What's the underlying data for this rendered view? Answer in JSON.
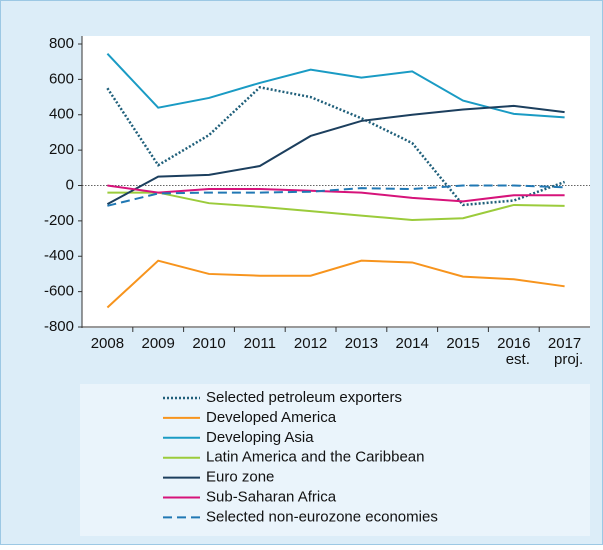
{
  "chart_data": {
    "type": "line",
    "categories": [
      "2008",
      "2009",
      "2010",
      "2011",
      "2012",
      "2013",
      "2014",
      "2015",
      "2016",
      "2017"
    ],
    "category_sublabels": [
      null,
      null,
      null,
      null,
      null,
      null,
      null,
      null,
      "est.",
      "proj."
    ],
    "ylim": [
      -800,
      800
    ],
    "yticks": [
      -800,
      -600,
      -400,
      -200,
      0,
      200,
      400,
      600,
      800
    ],
    "series": [
      {
        "name": "Selected petroleum exporters",
        "color": "#1f5f7a",
        "style": "dotted",
        "values": [
          550,
          115,
          285,
          555,
          500,
          380,
          240,
          -110,
          -85,
          20
        ]
      },
      {
        "name": "Developed America",
        "color": "#f7941d",
        "style": "solid",
        "values": [
          -690,
          -425,
          -500,
          -510,
          -510,
          -425,
          -435,
          -515,
          -530,
          -570
        ]
      },
      {
        "name": "Developing Asia",
        "color": "#1a9bc4",
        "style": "solid",
        "values": [
          745,
          440,
          495,
          580,
          655,
          610,
          645,
          480,
          405,
          385
        ]
      },
      {
        "name": "Latin America and the Caribbean",
        "color": "#9bcb3b",
        "style": "solid",
        "values": [
          -40,
          -40,
          -100,
          -120,
          -145,
          -170,
          -195,
          -185,
          -110,
          -115
        ]
      },
      {
        "name": "Euro zone",
        "color": "#1c3f5e",
        "style": "solid",
        "values": [
          -105,
          50,
          60,
          110,
          280,
          365,
          400,
          430,
          450,
          415
        ]
      },
      {
        "name": "Sub-Saharan Africa",
        "color": "#d6137a",
        "style": "solid",
        "values": [
          0,
          -40,
          -20,
          -20,
          -30,
          -40,
          -70,
          -90,
          -55,
          -55
        ]
      },
      {
        "name": "Selected non-eurozone economies",
        "color": "#2078b4",
        "style": "dashed",
        "values": [
          -115,
          -45,
          -40,
          -40,
          -35,
          -15,
          -20,
          0,
          0,
          -10
        ]
      }
    ]
  }
}
